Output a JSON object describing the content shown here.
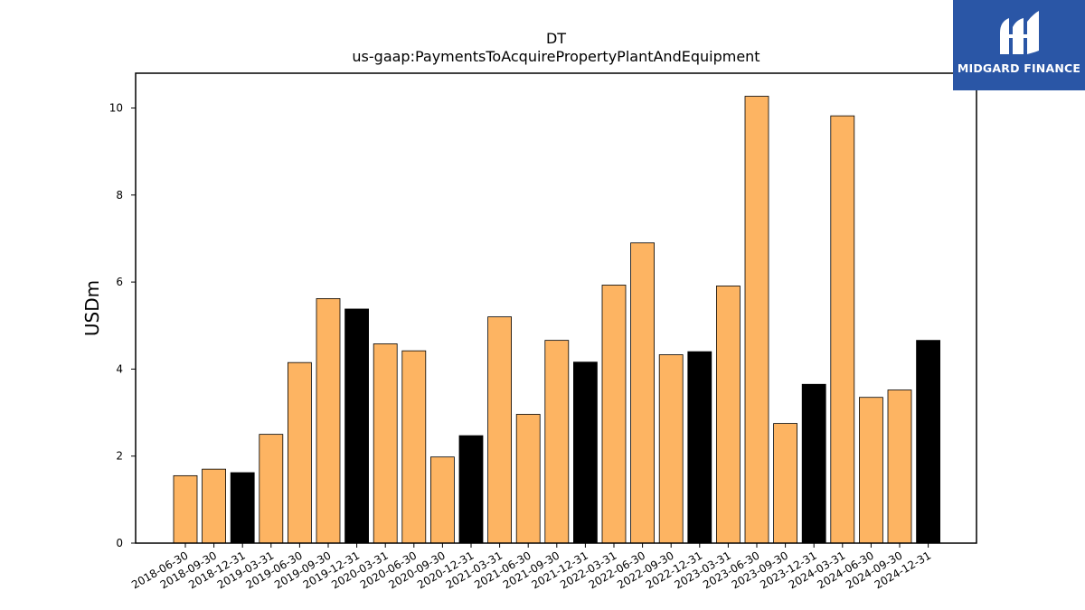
{
  "chart_data": {
    "type": "bar",
    "title": "DT",
    "subtitle": "us-gaap:PaymentsToAcquirePropertyPlantAndEquipment",
    "xlabel": "",
    "ylabel": "USDm",
    "ylim": [
      0,
      10.8
    ],
    "yticks": [
      0,
      2,
      4,
      6,
      8,
      10
    ],
    "grid": false,
    "categories": [
      "2018-06-30",
      "2018-09-30",
      "2018-12-31",
      "2019-03-31",
      "2019-06-30",
      "2019-09-30",
      "2019-12-31",
      "2020-03-31",
      "2020-06-30",
      "2020-09-30",
      "2020-12-31",
      "2021-03-31",
      "2021-06-30",
      "2021-09-30",
      "2021-12-31",
      "2022-03-31",
      "2022-06-30",
      "2022-09-30",
      "2022-12-31",
      "2023-03-31",
      "2023-06-30",
      "2023-09-30",
      "2023-12-31",
      "2024-03-31",
      "2024-06-30",
      "2024-09-30",
      "2024-12-31"
    ],
    "values": [
      1.55,
      1.7,
      1.62,
      2.5,
      4.15,
      5.62,
      5.38,
      4.58,
      4.42,
      1.98,
      2.47,
      5.2,
      2.96,
      4.66,
      4.16,
      5.93,
      6.9,
      4.33,
      4.4,
      5.91,
      10.27,
      2.75,
      3.65,
      9.82,
      3.35,
      3.52,
      4.66
    ],
    "year_end": [
      false,
      false,
      true,
      false,
      false,
      false,
      true,
      false,
      false,
      false,
      true,
      false,
      false,
      false,
      true,
      false,
      false,
      false,
      true,
      false,
      false,
      false,
      true,
      false,
      false,
      false,
      true
    ],
    "colors": {
      "quarter": "#fdb462",
      "year_end": "#000000",
      "edge": "#000000"
    }
  },
  "logo": {
    "text": "MIDGARD FINANCE",
    "background": "#2a56a6"
  }
}
